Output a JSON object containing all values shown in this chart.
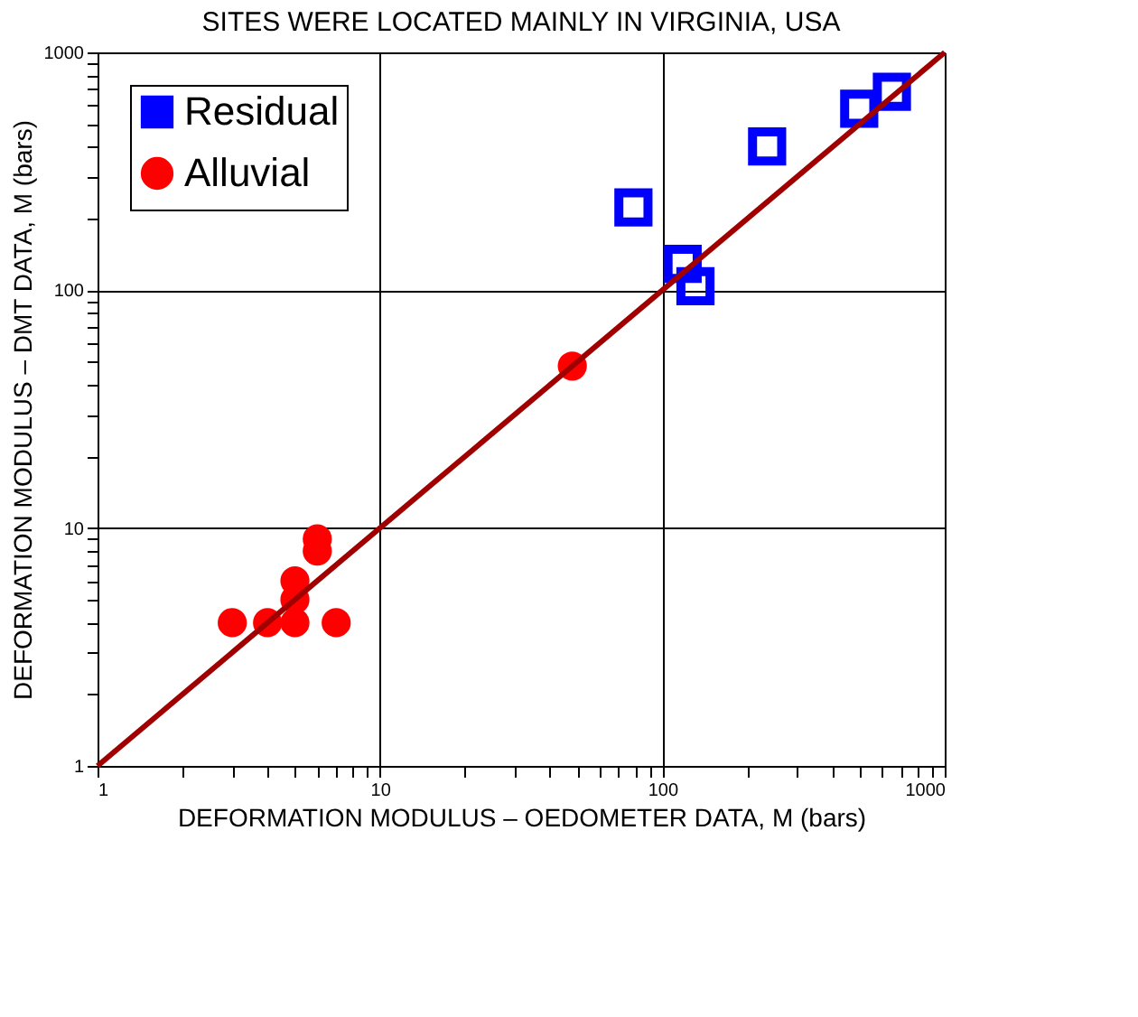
{
  "chart_data": {
    "type": "scatter",
    "title": "SITES WERE LOCATED MAINLY IN VIRGINIA, USA",
    "xlabel": "DEFORMATION MODULUS – OEDOMETER DATA, M (bars)",
    "ylabel": "DEFORMATION MODULUS – DMT DATA, M (bars)",
    "log": "xy",
    "grid": true,
    "legend": "top left",
    "xlim": [
      1,
      1000
    ],
    "ylim": [
      1,
      1000
    ],
    "xticks": [
      1,
      {
        "value": 2,
        "label": null
      },
      {
        "value": 3,
        "label": null
      },
      {
        "value": 4,
        "label": null
      },
      {
        "value": 5,
        "label": null
      },
      {
        "value": 6,
        "label": null
      },
      {
        "value": 7,
        "label": null
      },
      {
        "value": 8,
        "label": null
      },
      {
        "value": 9,
        "label": null
      },
      10,
      {
        "value": 20,
        "label": null
      },
      {
        "value": 30,
        "label": null
      },
      {
        "value": 40,
        "label": null
      },
      {
        "value": 50,
        "label": null
      },
      {
        "value": 60,
        "label": null
      },
      {
        "value": 70,
        "label": null
      },
      {
        "value": 80,
        "label": null
      },
      {
        "value": 90,
        "label": null
      },
      100,
      {
        "value": 200,
        "label": null
      },
      {
        "value": 300,
        "label": null
      },
      {
        "value": 400,
        "label": null
      },
      {
        "value": 500,
        "label": null
      },
      {
        "value": 600,
        "label": null
      },
      {
        "value": 700,
        "label": null
      },
      {
        "value": 800,
        "label": null
      },
      {
        "value": 900,
        "label": null
      },
      1000
    ],
    "yticks": [
      1,
      {
        "value": 2,
        "label": null
      },
      {
        "value": 3,
        "label": null
      },
      {
        "value": 4,
        "label": null
      },
      {
        "value": 5,
        "label": null
      },
      {
        "value": 6,
        "label": null
      },
      {
        "value": 7,
        "label": null
      },
      {
        "value": 8,
        "label": null
      },
      {
        "value": 9,
        "label": null
      },
      10,
      {
        "value": 20,
        "label": null
      },
      {
        "value": 30,
        "label": null
      },
      {
        "value": 40,
        "label": null
      },
      {
        "value": 50,
        "label": null
      },
      {
        "value": 60,
        "label": null
      },
      {
        "value": 70,
        "label": null
      },
      {
        "value": 80,
        "label": null
      },
      {
        "value": 90,
        "label": null
      },
      100,
      {
        "value": 200,
        "label": null
      },
      {
        "value": 300,
        "label": null
      },
      {
        "value": 400,
        "label": null
      },
      {
        "value": 500,
        "label": null
      },
      {
        "value": 600,
        "label": null
      },
      {
        "value": 700,
        "label": null
      },
      {
        "value": 800,
        "label": null
      },
      {
        "value": 900,
        "label": null
      },
      1000
    ],
    "series": [
      {
        "name": "Residual",
        "color": "#0000ff",
        "marker": "square",
        "x": [
          79,
          118,
          131,
          235,
          498,
          650
        ],
        "values": [
          223,
          129,
          104,
          402,
          580,
          683
        ]
      },
      {
        "name": "Alluvial",
        "color": "#ff0000",
        "marker": "circle",
        "x": [
          3,
          4,
          5,
          7,
          5,
          5,
          6,
          6,
          48
        ],
        "values": [
          4,
          4,
          4,
          4,
          5,
          6,
          8,
          9,
          48
        ]
      },
      {
        "type": "line",
        "color": "#a00000",
        "line_style": "solid",
        "marker": "none",
        "x": [
          1,
          1000
        ],
        "values": [
          1,
          1000
        ]
      }
    ]
  }
}
